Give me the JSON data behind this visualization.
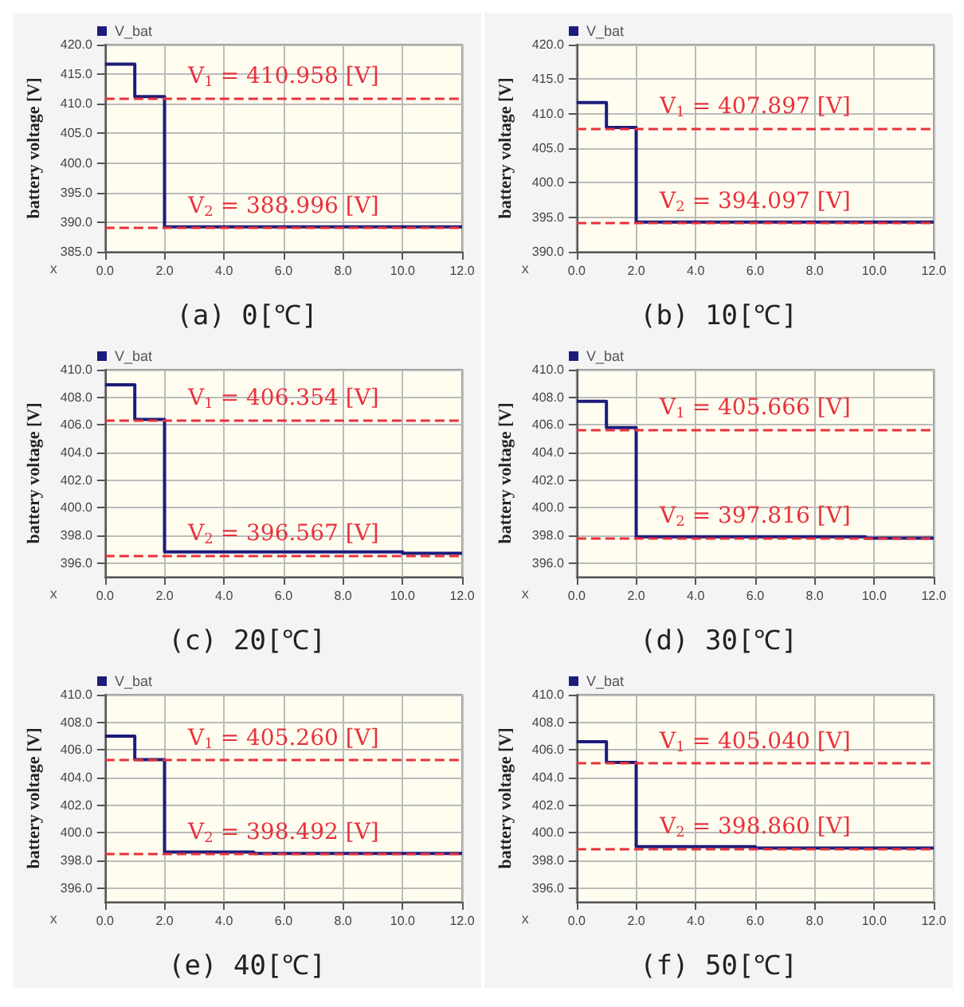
{
  "chart_data": [
    {
      "type": "step",
      "title": "(a) 0[℃]",
      "ylabel": "battery voltage [V]",
      "xlabel": "x",
      "legend": "top left",
      "grid": true,
      "xlim": [
        0,
        12
      ],
      "xticks": [
        {
          "value": 0,
          "label": "0.0"
        },
        {
          "value": 2,
          "label": "2.0"
        },
        {
          "value": 4,
          "label": "4.0"
        },
        {
          "value": 6,
          "label": "6.0"
        },
        {
          "value": 8,
          "label": "8.0"
        },
        {
          "value": 10,
          "label": "10.0"
        },
        {
          "value": 12,
          "label": "12.0"
        }
      ],
      "ylim": [
        385,
        420
      ],
      "yticks": [
        {
          "value": 385,
          "label": "385.0"
        },
        {
          "value": 390,
          "label": "390.0"
        },
        {
          "value": 395,
          "label": "395.0"
        },
        {
          "value": 400,
          "label": "400.0"
        },
        {
          "value": 405,
          "label": "405.0"
        },
        {
          "value": 410,
          "label": "410.0"
        },
        {
          "value": 415,
          "label": "415.0"
        },
        {
          "value": 420,
          "label": "420.0"
        }
      ],
      "series": [
        {
          "name": "V_bat",
          "color": "#1c1c7c",
          "x": [
            0,
            1,
            2,
            12
          ],
          "values": [
            416.7,
            411.2,
            389.2,
            389.2
          ]
        }
      ],
      "ref_lines": [
        {
          "axis": "y",
          "value": 410.958,
          "label": "V$_{1}$ = 410.958 [V]",
          "color": "#e8323c",
          "line_style": "dashed"
        },
        {
          "axis": "y",
          "value": 388.996,
          "label": "V$_{2}$ = 388.996 [V]",
          "color": "#e8323c",
          "line_style": "dashed"
        }
      ]
    },
    {
      "type": "step",
      "title": "(b) 10[℃]",
      "ylabel": "battery voltage [V]",
      "xlabel": "x",
      "legend": "top left",
      "grid": true,
      "xlim": [
        0,
        12
      ],
      "xticks": [
        {
          "value": 0,
          "label": "0.0"
        },
        {
          "value": 2,
          "label": "2.0"
        },
        {
          "value": 4,
          "label": "4.0"
        },
        {
          "value": 6,
          "label": "6.0"
        },
        {
          "value": 8,
          "label": "8.0"
        },
        {
          "value": 10,
          "label": "10.0"
        },
        {
          "value": 12,
          "label": "12.0"
        }
      ],
      "ylim": [
        390,
        420
      ],
      "yticks": [
        {
          "value": 390,
          "label": "390.0"
        },
        {
          "value": 395,
          "label": "395.0"
        },
        {
          "value": 400,
          "label": "400.0"
        },
        {
          "value": 405,
          "label": "405.0"
        },
        {
          "value": 410,
          "label": "410.0"
        },
        {
          "value": 415,
          "label": "415.0"
        },
        {
          "value": 420,
          "label": "420.0"
        }
      ],
      "series": [
        {
          "name": "V_bat",
          "color": "#1c1c7c",
          "x": [
            0,
            1,
            2,
            12
          ],
          "values": [
            411.6,
            408.0,
            394.3,
            394.3
          ]
        }
      ],
      "ref_lines": [
        {
          "axis": "y",
          "value": 407.897,
          "label": "V$_{1}$ = 407.897 [V]",
          "color": "#e8323c",
          "line_style": "dashed"
        },
        {
          "axis": "y",
          "value": 394.097,
          "label": "V$_{2}$ = 394.097 [V]",
          "color": "#e8323c",
          "line_style": "dashed"
        }
      ]
    },
    {
      "type": "step",
      "title": "(c) 20[℃]",
      "ylabel": "battery voltage [V]",
      "xlabel": "x",
      "legend": "top left",
      "grid": true,
      "xlim": [
        0,
        12
      ],
      "xticks": [
        {
          "value": 0,
          "label": "0.0"
        },
        {
          "value": 2,
          "label": "2.0"
        },
        {
          "value": 4,
          "label": "4.0"
        },
        {
          "value": 6,
          "label": "6.0"
        },
        {
          "value": 8,
          "label": "8.0"
        },
        {
          "value": 10,
          "label": "10.0"
        },
        {
          "value": 12,
          "label": "12.0"
        }
      ],
      "ylim": [
        395,
        410
      ],
      "yticks": [
        {
          "value": 396,
          "label": "396.0"
        },
        {
          "value": 398,
          "label": "398.0"
        },
        {
          "value": 400,
          "label": "400.0"
        },
        {
          "value": 402,
          "label": "402.0"
        },
        {
          "value": 404,
          "label": "404.0"
        },
        {
          "value": 406,
          "label": "406.0"
        },
        {
          "value": 408,
          "label": "408.0"
        },
        {
          "value": 410,
          "label": "410.0"
        }
      ],
      "series": [
        {
          "name": "V_bat",
          "color": "#1c1c7c",
          "x": [
            0,
            1,
            2,
            10,
            12
          ],
          "values": [
            408.9,
            406.4,
            396.8,
            396.7,
            396.7
          ]
        }
      ],
      "ref_lines": [
        {
          "axis": "y",
          "value": 406.354,
          "label": "V$_{1}$ = 406.354 [V]",
          "color": "#e8323c",
          "line_style": "dashed"
        },
        {
          "axis": "y",
          "value": 396.567,
          "label": "V$_{2}$ = 396.567 [V]",
          "color": "#e8323c",
          "line_style": "dashed"
        }
      ]
    },
    {
      "type": "step",
      "title": "(d) 30[℃]",
      "ylabel": "battery voltage [V]",
      "xlabel": "x",
      "legend": "top left",
      "grid": true,
      "xlim": [
        0,
        12
      ],
      "xticks": [
        {
          "value": 0,
          "label": "0.0"
        },
        {
          "value": 2,
          "label": "2.0"
        },
        {
          "value": 4,
          "label": "4.0"
        },
        {
          "value": 6,
          "label": "6.0"
        },
        {
          "value": 8,
          "label": "8.0"
        },
        {
          "value": 10,
          "label": "10.0"
        },
        {
          "value": 12,
          "label": "12.0"
        }
      ],
      "ylim": [
        395,
        410
      ],
      "yticks": [
        {
          "value": 396,
          "label": "396.0"
        },
        {
          "value": 398,
          "label": "398.0"
        },
        {
          "value": 400,
          "label": "400.0"
        },
        {
          "value": 402,
          "label": "402.0"
        },
        {
          "value": 404,
          "label": "404.0"
        },
        {
          "value": 406,
          "label": "406.0"
        },
        {
          "value": 408,
          "label": "408.0"
        },
        {
          "value": 410,
          "label": "410.0"
        }
      ],
      "series": [
        {
          "name": "V_bat",
          "color": "#1c1c7c",
          "x": [
            0,
            1,
            2,
            9.7,
            12
          ],
          "values": [
            407.7,
            405.8,
            397.9,
            397.8,
            397.8
          ]
        }
      ],
      "ref_lines": [
        {
          "axis": "y",
          "value": 405.666,
          "label": "V$_{1}$ = 405.666 [V]",
          "color": "#e8323c",
          "line_style": "dashed"
        },
        {
          "axis": "y",
          "value": 397.816,
          "label": "V$_{2}$ = 397.816 [V]",
          "color": "#e8323c",
          "line_style": "dashed"
        }
      ]
    },
    {
      "type": "step",
      "title": "(e) 40[℃]",
      "ylabel": "battery voltage [V]",
      "xlabel": "x",
      "legend": "top left",
      "grid": true,
      "xlim": [
        0,
        12
      ],
      "xticks": [
        {
          "value": 0,
          "label": "0.0"
        },
        {
          "value": 2,
          "label": "2.0"
        },
        {
          "value": 4,
          "label": "4.0"
        },
        {
          "value": 6,
          "label": "6.0"
        },
        {
          "value": 8,
          "label": "8.0"
        },
        {
          "value": 10,
          "label": "10.0"
        },
        {
          "value": 12,
          "label": "12.0"
        }
      ],
      "ylim": [
        395,
        410
      ],
      "yticks": [
        {
          "value": 396,
          "label": "396.0"
        },
        {
          "value": 398,
          "label": "398.0"
        },
        {
          "value": 400,
          "label": "400.0"
        },
        {
          "value": 402,
          "label": "402.0"
        },
        {
          "value": 404,
          "label": "404.0"
        },
        {
          "value": 406,
          "label": "406.0"
        },
        {
          "value": 408,
          "label": "408.0"
        },
        {
          "value": 410,
          "label": "410.0"
        }
      ],
      "series": [
        {
          "name": "V_bat",
          "color": "#1c1c7c",
          "x": [
            0,
            1,
            2,
            5,
            12
          ],
          "values": [
            407.0,
            405.3,
            398.6,
            398.5,
            398.5
          ]
        }
      ],
      "ref_lines": [
        {
          "axis": "y",
          "value": 405.26,
          "label": "V$_{1}$ = 405.260 [V]",
          "color": "#e8323c",
          "line_style": "dashed"
        },
        {
          "axis": "y",
          "value": 398.492,
          "label": "V$_{2}$ = 398.492 [V]",
          "color": "#e8323c",
          "line_style": "dashed"
        }
      ]
    },
    {
      "type": "step",
      "title": "(f) 50[℃]",
      "ylabel": "battery voltage [V]",
      "xlabel": "x",
      "legend": "top left",
      "grid": true,
      "xlim": [
        0,
        12
      ],
      "xticks": [
        {
          "value": 0,
          "label": "0.0"
        },
        {
          "value": 2,
          "label": "2.0"
        },
        {
          "value": 4,
          "label": "4.0"
        },
        {
          "value": 6,
          "label": "6.0"
        },
        {
          "value": 8,
          "label": "8.0"
        },
        {
          "value": 10,
          "label": "10.0"
        },
        {
          "value": 12,
          "label": "12.0"
        }
      ],
      "ylim": [
        395,
        410
      ],
      "yticks": [
        {
          "value": 396,
          "label": "396.0"
        },
        {
          "value": 398,
          "label": "398.0"
        },
        {
          "value": 400,
          "label": "400.0"
        },
        {
          "value": 402,
          "label": "402.0"
        },
        {
          "value": 404,
          "label": "404.0"
        },
        {
          "value": 406,
          "label": "406.0"
        },
        {
          "value": 408,
          "label": "408.0"
        },
        {
          "value": 410,
          "label": "410.0"
        }
      ],
      "series": [
        {
          "name": "V_bat",
          "color": "#1c1c7c",
          "x": [
            0,
            1,
            2,
            6,
            12
          ],
          "values": [
            406.6,
            405.1,
            399.0,
            398.9,
            398.9
          ]
        }
      ],
      "ref_lines": [
        {
          "axis": "y",
          "value": 405.04,
          "label": "V$_{1}$ = 405.040 [V]",
          "color": "#e8323c",
          "line_style": "dashed"
        },
        {
          "axis": "y",
          "value": 398.86,
          "label": "V$_{2}$ = 398.860 [V]",
          "color": "#e8323c",
          "line_style": "dashed"
        }
      ]
    }
  ]
}
